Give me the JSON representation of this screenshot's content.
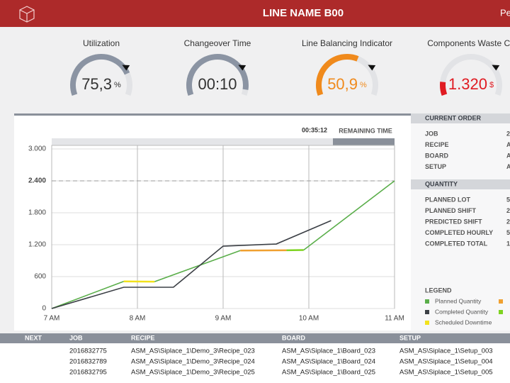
{
  "header": {
    "title": "LINE NAME B00",
    "user": "Pe"
  },
  "kpis": [
    {
      "title": "Utilization",
      "value": "75,3",
      "unit": "%"
    },
    {
      "title": "Changeover Time",
      "value": "00:10"
    },
    {
      "title": "Line Balancing Indicator",
      "value": "50,9",
      "unit": "%"
    },
    {
      "title": "Components Waste Co",
      "value": "1.320",
      "unit": "$"
    }
  ],
  "chart_data": {
    "type": "line",
    "timer": "00:35:12",
    "timer_label": "REMAINING TIME",
    "xlim": [
      7,
      11
    ],
    "xticks": [
      {
        "value": 7,
        "label": "7 AM"
      },
      {
        "value": 8,
        "label": "8 AM"
      },
      {
        "value": 9,
        "label": "9 AM"
      },
      {
        "value": 10,
        "label": "10 AM"
      },
      {
        "value": 11,
        "label": "11 AM"
      }
    ],
    "ylim": [
      0,
      3000
    ],
    "yticks": [
      0,
      600,
      {
        "value": 1200,
        "label": "1.200"
      },
      {
        "value": 1800,
        "label": "1.800"
      },
      {
        "value": 2400,
        "label": "2.400"
      },
      {
        "value": 3000,
        "label": "3.000"
      }
    ],
    "target_line": 2400,
    "grid": true,
    "legend_title": "LEGEND",
    "series": [
      {
        "name": "Planned Quantity",
        "color": "#5aae4a",
        "x": [
          7,
          7.84,
          8.0,
          8.2,
          9.2,
          9.6,
          9.94,
          11
        ],
        "values": [
          0,
          510,
          null,
          505,
          1090,
          null,
          1100,
          2400
        ]
      },
      {
        "name": "Completed Quantity",
        "color": "#3c4046",
        "x": [
          7,
          7.84,
          8.42,
          9.0,
          9.62,
          10.26
        ],
        "values": [
          0,
          400,
          400,
          1173,
          1213,
          1653
        ]
      },
      {
        "name": "Scheduled Downtime",
        "color": "#f2e21c",
        "x": [
          7.84,
          8.2
        ],
        "values": [
          510,
          505
        ]
      },
      {
        "color": "#f0a030",
        "x": [
          9.2,
          9.74
        ],
        "values": [
          1090,
          1095
        ]
      },
      {
        "color": "#7ed321",
        "x": [
          9.74,
          9.94
        ],
        "values": [
          1095,
          1100
        ]
      }
    ]
  },
  "current_order": {
    "title": "CURRENT ORDER",
    "rows": [
      [
        "JOB",
        "2"
      ],
      [
        "RECIPE",
        "A"
      ],
      [
        "BOARD",
        "A"
      ],
      [
        "SETUP",
        "A"
      ]
    ]
  },
  "quantity": {
    "title": "QUANTITY",
    "rows": [
      [
        "PLANNED LOT",
        "5"
      ],
      [
        "PLANNED SHIFT",
        "2"
      ],
      [
        "PREDICTED SHIFT",
        "2"
      ],
      [
        "COMPLETED HOURLY",
        "5"
      ],
      [
        "COMPLETED TOTAL",
        "1"
      ]
    ]
  },
  "next_table": {
    "columns": [
      "NEXT",
      "JOB",
      "RECIPE",
      "BOARD",
      "SETUP"
    ],
    "rows": [
      [
        "2016832775",
        "ASM_AS\\Siplace_1\\Demo_3\\Recipe_023",
        "ASM_AS\\Siplace_1\\Board_023",
        "ASM_AS\\Siplace_1\\Setup_003"
      ],
      [
        "2016832789",
        "ASM_AS\\Siplace_1\\Demo_3\\Recipe_024",
        "ASM_AS\\Siplace_1\\Board_024",
        "ASM_AS\\Siplace_1\\Setup_004"
      ],
      [
        "2016832795",
        "ASM_AS\\Siplace_1\\Demo_3\\Recipe_025",
        "ASM_AS\\Siplace_1\\Board_025",
        "ASM_AS\\Siplace_1\\Setup_005"
      ]
    ]
  }
}
